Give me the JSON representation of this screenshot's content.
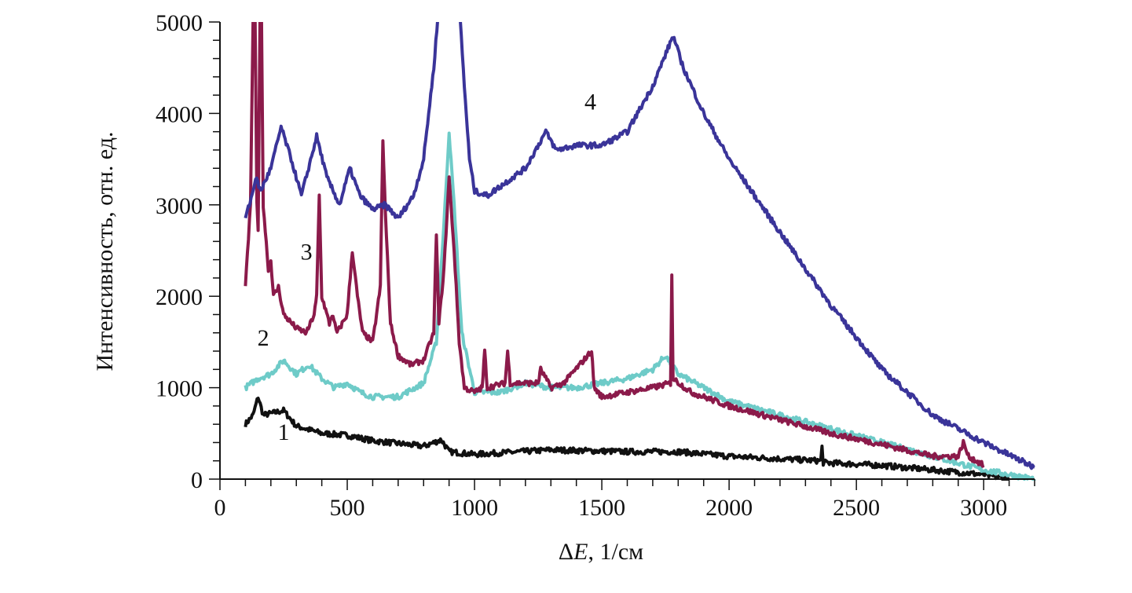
{
  "chart_data": {
    "type": "line",
    "title": "",
    "xlabel_prefix": "ΔE",
    "xlabel_suffix": ", 1/см",
    "ylabel": "Интенсивность, отн. ед.",
    "xlim": [
      0,
      3200
    ],
    "ylim": [
      0,
      5000
    ],
    "x_ticks": [
      0,
      500,
      1000,
      1500,
      2000,
      2500,
      3000
    ],
    "x_tick_labels": [
      "0",
      "500",
      "1000",
      "1500",
      "2000",
      "2500",
      "3000"
    ],
    "x_minor_step": 100,
    "y_ticks": [
      0,
      1000,
      2000,
      3000,
      4000,
      5000
    ],
    "y_tick_labels": [
      "0",
      "1000",
      "2000",
      "3000",
      "4000",
      "5000"
    ],
    "y_minor_step": 200,
    "grid": false,
    "series": [
      {
        "name": "1",
        "color": "#111111",
        "x": [
          100,
          130,
          150,
          170,
          250,
          300,
          400,
          500,
          600,
          800,
          870,
          900,
          1000,
          1300,
          1600,
          1800,
          2000,
          2360,
          2365,
          2370,
          2600,
          2800,
          3000,
          3100
        ],
        "y": [
          600,
          700,
          900,
          700,
          750,
          580,
          500,
          480,
          420,
          360,
          430,
          300,
          270,
          320,
          300,
          300,
          250,
          200,
          350,
          180,
          150,
          100,
          50,
          0
        ],
        "label_at": [
          250,
          430
        ]
      },
      {
        "name": "2",
        "color": "#6ecbc8",
        "x": [
          100,
          150,
          200,
          250,
          300,
          350,
          400,
          450,
          500,
          550,
          600,
          700,
          800,
          850,
          880,
          900,
          920,
          950,
          1000,
          1100,
          1200,
          1300,
          1400,
          1500,
          1600,
          1700,
          1750,
          1800,
          1900,
          2000,
          2200,
          2400,
          2600,
          2800,
          3000,
          3200
        ],
        "y": [
          1000,
          1100,
          1150,
          1300,
          1150,
          1250,
          1100,
          1000,
          1050,
          950,
          900,
          900,
          1050,
          1500,
          2800,
          3800,
          3000,
          1600,
          950,
          950,
          1050,
          1000,
          1000,
          1050,
          1100,
          1200,
          1350,
          1150,
          1000,
          850,
          700,
          550,
          400,
          250,
          100,
          0
        ],
        "label_at": [
          170,
          1460
        ]
      },
      {
        "name": "3",
        "color": "#8b1a4a",
        "x": [
          100,
          120,
          135,
          145,
          150,
          160,
          170,
          190,
          200,
          210,
          230,
          250,
          300,
          340,
          370,
          380,
          390,
          400,
          430,
          440,
          460,
          500,
          520,
          540,
          560,
          600,
          630,
          640,
          650,
          670,
          700,
          750,
          800,
          840,
          850,
          860,
          880,
          900,
          920,
          940,
          960,
          1000,
          1030,
          1040,
          1050,
          1120,
          1130,
          1140,
          1250,
          1260,
          1300,
          1350,
          1460,
          1470,
          1500,
          1600,
          1700,
          1770,
          1775,
          1780,
          1850,
          2000,
          2200,
          2400,
          2600,
          2800,
          2900,
          2920,
          2940,
          3000
        ],
        "y": [
          2100,
          3000,
          6000,
          3000,
          2700,
          6000,
          3000,
          2300,
          2400,
          2000,
          2100,
          1800,
          1650,
          1600,
          1800,
          2000,
          3100,
          2000,
          1700,
          1800,
          1600,
          1800,
          2500,
          2000,
          1600,
          1500,
          2100,
          3700,
          2900,
          1700,
          1350,
          1250,
          1300,
          1600,
          2700,
          1700,
          2300,
          3300,
          2500,
          1500,
          1000,
          950,
          1000,
          1400,
          1000,
          1050,
          1400,
          1050,
          1050,
          1200,
          1000,
          1050,
          1400,
          1000,
          900,
          950,
          1000,
          1050,
          2250,
          1100,
          950,
          800,
          650,
          500,
          380,
          250,
          250,
          400,
          250,
          150
        ],
        "label_at": [
          340,
          2400
        ]
      },
      {
        "name": "4",
        "color": "#3a3499",
        "x": [
          100,
          130,
          140,
          160,
          200,
          240,
          280,
          320,
          380,
          420,
          470,
          510,
          550,
          600,
          650,
          700,
          760,
          800,
          840,
          860,
          900,
          940,
          960,
          980,
          1000,
          1050,
          1100,
          1200,
          1280,
          1320,
          1400,
          1500,
          1600,
          1700,
          1780,
          1820,
          1900,
          2000,
          2200,
          2400,
          2600,
          2800,
          3000,
          3200
        ],
        "y": [
          2850,
          3150,
          3300,
          3150,
          3400,
          3850,
          3500,
          3100,
          3750,
          3300,
          3000,
          3400,
          3100,
          2950,
          3000,
          2850,
          3100,
          3500,
          4500,
          5200,
          7000,
          5200,
          4300,
          3500,
          3150,
          3100,
          3200,
          3400,
          3800,
          3600,
          3650,
          3650,
          3800,
          4300,
          4850,
          4500,
          4000,
          3500,
          2700,
          1900,
          1200,
          700,
          400,
          130
        ],
        "label_at": [
          1455,
          4040
        ]
      }
    ]
  }
}
